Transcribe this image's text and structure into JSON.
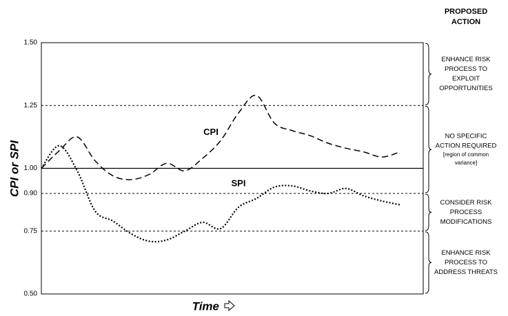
{
  "chart_data": {
    "type": "line",
    "y_label": "CPI or SPI",
    "x_label": "Time",
    "ylim": [
      0.5,
      1.5
    ],
    "yticks": [
      {
        "value": 0.5,
        "label": "0.50"
      },
      {
        "value": 0.75,
        "label": "0.75"
      },
      {
        "value": 0.9,
        "label": "0.90"
      },
      {
        "value": 1.0,
        "label": "1.00"
      },
      {
        "value": 1.25,
        "label": "1.25"
      },
      {
        "value": 1.5,
        "label": "1.50"
      }
    ],
    "grid": true,
    "baseline": 1.0,
    "series": [
      {
        "name": "CPI",
        "color": "#000000",
        "style": "dashed",
        "values": [
          1.0,
          1.07,
          1.125,
          1.03,
          0.97,
          0.955,
          0.975,
          1.02,
          0.99,
          1.04,
          1.11,
          1.22,
          1.29,
          1.18,
          1.15,
          1.13,
          1.1,
          1.08,
          1.065,
          1.045,
          1.065
        ]
      },
      {
        "name": "SPI",
        "color": "#000000",
        "style": "dotted",
        "values": [
          1.0,
          1.09,
          0.99,
          0.83,
          0.79,
          0.74,
          0.71,
          0.715,
          0.75,
          0.785,
          0.76,
          0.845,
          0.88,
          0.925,
          0.93,
          0.91,
          0.9,
          0.92,
          0.89,
          0.87,
          0.855
        ]
      }
    ],
    "action_header": [
      "PROPOSED",
      "ACTION"
    ],
    "regions": [
      {
        "from": 1.25,
        "to": 1.5,
        "lines": [
          "ENHANCE RISK",
          "PROCESS TO",
          "EXPLOIT",
          "OPPORTUNITIES"
        ]
      },
      {
        "from": 0.9,
        "to": 1.25,
        "lines": [
          "NO SPECIFIC",
          "ACTION REQUIRED"
        ],
        "note_lines": [
          "[region of common",
          "variance]"
        ]
      },
      {
        "from": 0.75,
        "to": 0.9,
        "lines": [
          "CONSIDER RISK",
          "PROCESS",
          "MODIFICATIONS"
        ]
      },
      {
        "from": 0.5,
        "to": 0.75,
        "lines": [
          "ENHANCE RISK",
          "PROCESS TO",
          "ADDRESS THREATS"
        ]
      }
    ]
  }
}
